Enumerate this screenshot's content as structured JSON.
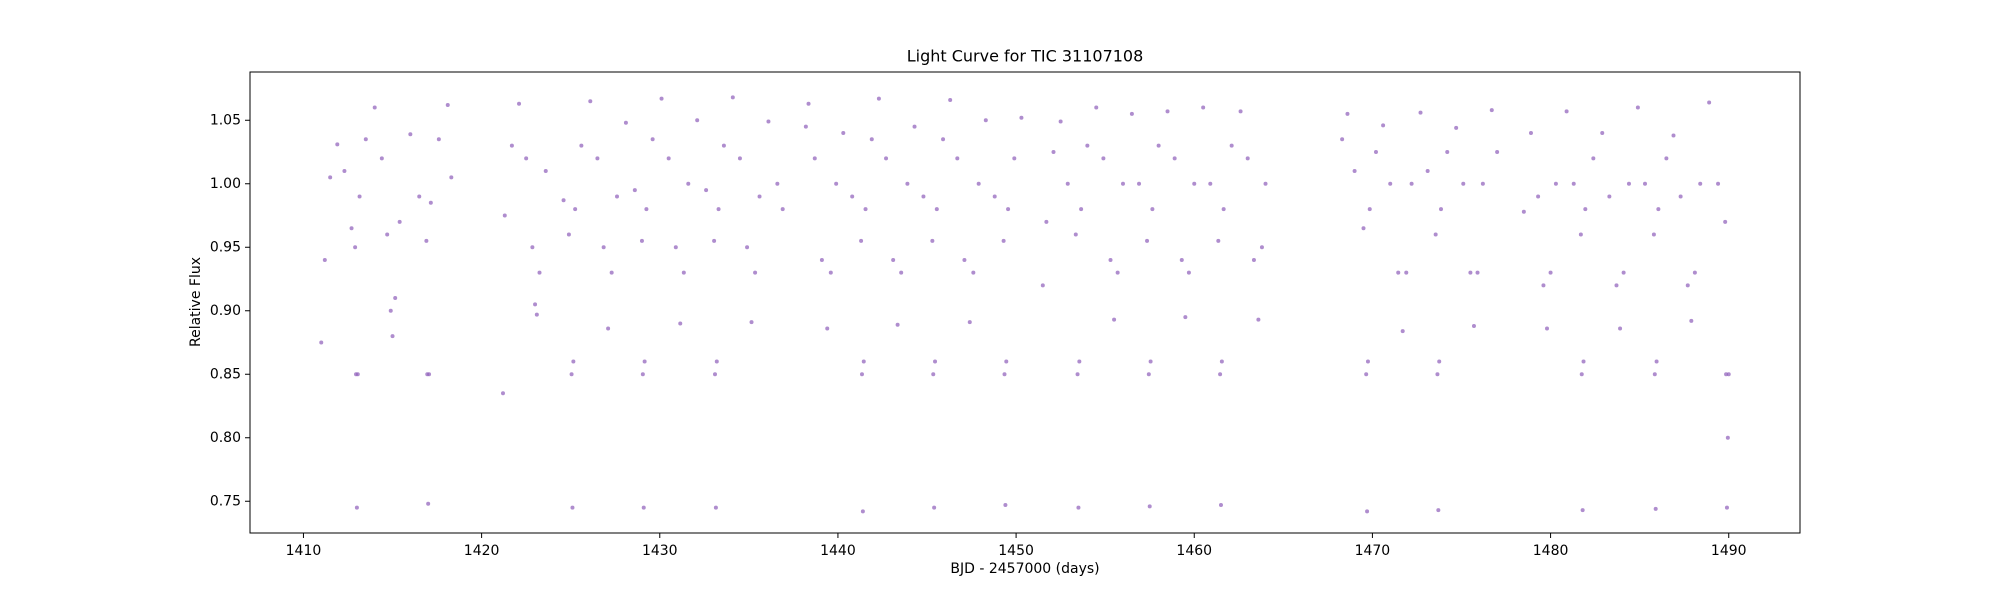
{
  "chart_data": {
    "type": "scatter",
    "title": "Light Curve for TIC 31107108",
    "xlabel": "BJD - 2457000 (days)",
    "ylabel": "Relative Flux",
    "color": "#9467bd",
    "xlim": [
      1407,
      1494
    ],
    "ylim": [
      0.725,
      1.088
    ],
    "xticks": [
      1410,
      1420,
      1430,
      1440,
      1450,
      1460,
      1470,
      1480,
      1490
    ],
    "yticks": [
      0.75,
      {
        "value": 0.8,
        "label": "0.80"
      },
      0.85,
      {
        "value": 0.9,
        "label": "0.90"
      },
      0.95,
      {
        "value": 1.0,
        "label": "1.00"
      },
      1.05
    ],
    "x": [
      1411.0,
      1411.2,
      1411.5,
      1411.9,
      1412.3,
      1412.7,
      1412.9,
      1412.95,
      1413.0,
      1413.05,
      1413.15,
      1413.5,
      1414.0,
      1414.4,
      1414.7,
      1414.9,
      1415.0,
      1415.15,
      1415.4,
      1416.0,
      1416.5,
      1416.9,
      1416.95,
      1417.0,
      1417.05,
      1417.15,
      1417.6,
      1418.1,
      1418.3,
      1421.2,
      1421.3,
      1421.7,
      1422.1,
      1422.5,
      1422.85,
      1423.0,
      1423.1,
      1423.25,
      1423.6,
      1424.6,
      1424.9,
      1425.05,
      1425.1,
      1425.15,
      1425.25,
      1425.6,
      1426.1,
      1426.5,
      1426.85,
      1427.1,
      1427.3,
      1427.6,
      1428.1,
      1428.6,
      1429.0,
      1429.05,
      1429.1,
      1429.15,
      1429.25,
      1429.6,
      1430.1,
      1430.5,
      1430.9,
      1431.15,
      1431.35,
      1431.6,
      1432.1,
      1432.6,
      1433.05,
      1433.1,
      1433.15,
      1433.2,
      1433.3,
      1433.6,
      1434.1,
      1434.5,
      1434.9,
      1435.15,
      1435.35,
      1435.6,
      1436.1,
      1436.6,
      1436.9,
      1438.2,
      1438.35,
      1438.7,
      1439.1,
      1439.4,
      1439.6,
      1439.9,
      1440.3,
      1440.8,
      1441.3,
      1441.35,
      1441.4,
      1441.45,
      1441.55,
      1441.9,
      1442.3,
      1442.7,
      1443.1,
      1443.35,
      1443.55,
      1443.9,
      1444.3,
      1444.8,
      1445.3,
      1445.35,
      1445.4,
      1445.45,
      1445.55,
      1445.9,
      1446.3,
      1446.7,
      1447.1,
      1447.4,
      1447.6,
      1447.9,
      1448.3,
      1448.8,
      1449.3,
      1449.35,
      1449.4,
      1449.45,
      1449.55,
      1449.9,
      1450.3,
      1451.5,
      1451.7,
      1452.1,
      1452.5,
      1452.9,
      1453.35,
      1453.45,
      1453.5,
      1453.55,
      1453.65,
      1454.0,
      1454.5,
      1454.9,
      1455.3,
      1455.5,
      1455.7,
      1456.0,
      1456.5,
      1456.9,
      1457.35,
      1457.45,
      1457.5,
      1457.55,
      1457.65,
      1458.0,
      1458.5,
      1458.9,
      1459.3,
      1459.5,
      1459.7,
      1460.0,
      1460.5,
      1460.9,
      1461.35,
      1461.45,
      1461.5,
      1461.55,
      1461.65,
      1462.1,
      1462.6,
      1463.0,
      1463.35,
      1463.6,
      1463.8,
      1464.0,
      1468.3,
      1468.6,
      1469.0,
      1469.5,
      1469.65,
      1469.7,
      1469.75,
      1469.85,
      1470.2,
      1470.6,
      1471.0,
      1471.45,
      1471.7,
      1471.9,
      1472.2,
      1472.7,
      1473.1,
      1473.55,
      1473.65,
      1473.7,
      1473.75,
      1473.85,
      1474.2,
      1474.7,
      1475.1,
      1475.5,
      1475.7,
      1475.9,
      1476.2,
      1476.7,
      1477.0,
      1478.5,
      1478.9,
      1479.3,
      1479.6,
      1479.8,
      1480.0,
      1480.3,
      1480.9,
      1481.3,
      1481.7,
      1481.75,
      1481.8,
      1481.85,
      1481.95,
      1482.4,
      1482.9,
      1483.3,
      1483.7,
      1483.9,
      1484.1,
      1484.4,
      1484.9,
      1485.3,
      1485.8,
      1485.85,
      1485.9,
      1485.95,
      1486.05,
      1486.5,
      1486.9,
      1487.3,
      1487.7,
      1487.9,
      1488.1,
      1488.4,
      1488.9,
      1489.4,
      1489.8,
      1489.85,
      1489.9,
      1489.95,
      1490.0
    ],
    "values": [
      0.875,
      0.94,
      1.005,
      1.031,
      1.01,
      0.965,
      0.95,
      0.85,
      0.745,
      0.85,
      0.99,
      1.035,
      1.06,
      1.02,
      0.96,
      0.9,
      0.88,
      0.91,
      0.97,
      1.039,
      0.99,
      0.955,
      0.85,
      0.748,
      0.85,
      0.985,
      1.035,
      1.062,
      1.005,
      0.835,
      0.975,
      1.03,
      1.063,
      1.02,
      0.95,
      0.905,
      0.897,
      0.93,
      1.01,
      0.987,
      0.96,
      0.85,
      0.745,
      0.86,
      0.98,
      1.03,
      1.065,
      1.02,
      0.95,
      0.886,
      0.93,
      0.99,
      1.048,
      0.995,
      0.955,
      0.85,
      0.745,
      0.86,
      0.98,
      1.035,
      1.067,
      1.02,
      0.95,
      0.89,
      0.93,
      1.0,
      1.05,
      0.995,
      0.955,
      0.85,
      0.745,
      0.86,
      0.98,
      1.03,
      1.068,
      1.02,
      0.95,
      0.891,
      0.93,
      0.99,
      1.049,
      1.0,
      0.98,
      1.045,
      1.063,
      1.02,
      0.94,
      0.886,
      0.93,
      1.0,
      1.04,
      0.99,
      0.955,
      0.85,
      0.742,
      0.86,
      0.98,
      1.035,
      1.067,
      1.02,
      0.94,
      0.889,
      0.93,
      1.0,
      1.045,
      0.99,
      0.955,
      0.85,
      0.745,
      0.86,
      0.98,
      1.035,
      1.066,
      1.02,
      0.94,
      0.891,
      0.93,
      1.0,
      1.05,
      0.99,
      0.955,
      0.85,
      0.747,
      0.86,
      0.98,
      1.02,
      1.052,
      0.92,
      0.97,
      1.025,
      1.049,
      1.0,
      0.96,
      0.85,
      0.745,
      0.86,
      0.98,
      1.03,
      1.06,
      1.02,
      0.94,
      0.893,
      0.93,
      1.0,
      1.055,
      1.0,
      0.955,
      0.85,
      0.746,
      0.86,
      0.98,
      1.03,
      1.057,
      1.02,
      0.94,
      0.895,
      0.93,
      1.0,
      1.06,
      1.0,
      0.955,
      0.85,
      0.747,
      0.86,
      0.98,
      1.03,
      1.057,
      1.02,
      0.94,
      0.893,
      0.95,
      1.0,
      1.035,
      1.055,
      1.01,
      0.965,
      0.85,
      0.742,
      0.86,
      0.98,
      1.025,
      1.046,
      1.0,
      0.93,
      0.884,
      0.93,
      1.0,
      1.056,
      1.01,
      0.96,
      0.85,
      0.743,
      0.86,
      0.98,
      1.025,
      1.044,
      1.0,
      0.93,
      0.888,
      0.93,
      1.0,
      1.058,
      1.025,
      0.978,
      1.04,
      0.99,
      0.92,
      0.886,
      0.93,
      1.0,
      1.057,
      1.0,
      0.96,
      0.85,
      0.743,
      0.86,
      0.98,
      1.02,
      1.04,
      0.99,
      0.92,
      0.886,
      0.93,
      1.0,
      1.06,
      1.0,
      0.96,
      0.85,
      0.744,
      0.86,
      0.98,
      1.02,
      1.038,
      0.99,
      0.92,
      0.892,
      0.93,
      1.0,
      1.064,
      1.0,
      0.97,
      0.85,
      0.745,
      0.8,
      0.85
    ]
  }
}
